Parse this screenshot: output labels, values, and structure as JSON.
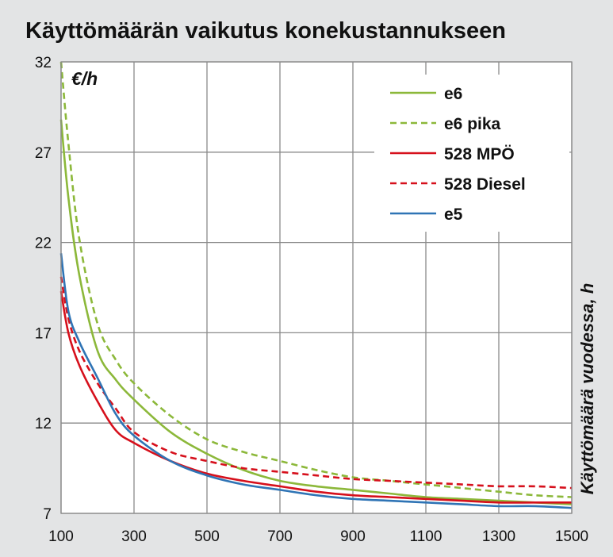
{
  "chart_data": {
    "type": "line",
    "title": "Käyttömäärän vaikutus konekustannukseen",
    "unit_label": "€/h",
    "xlabel": "",
    "ylabel": "Käyttömäärä vuodessa, h",
    "xlim": [
      100,
      1500
    ],
    "ylim": [
      7,
      32
    ],
    "x_ticks": [
      100,
      300,
      500,
      700,
      900,
      1100,
      1300,
      1500
    ],
    "y_ticks": [
      7,
      12,
      17,
      22,
      27,
      32
    ],
    "grid": true,
    "legend_position": "top-right",
    "x": [
      100,
      120,
      150,
      200,
      250,
      300,
      400,
      500,
      600,
      700,
      800,
      900,
      1000,
      1100,
      1200,
      1300,
      1400,
      1500
    ],
    "series": [
      {
        "name": "e6",
        "color": "#8cb83a",
        "dash": "solid",
        "values": [
          28.8,
          24.5,
          20.2,
          16.0,
          14.4,
          13.3,
          11.5,
          10.3,
          9.4,
          8.8,
          8.5,
          8.3,
          8.1,
          7.9,
          7.8,
          7.7,
          7.6,
          7.5
        ]
      },
      {
        "name": "e6 pika",
        "color": "#8cb83a",
        "dash": "dashed",
        "values": [
          32.0,
          27.5,
          22.2,
          17.5,
          15.5,
          14.2,
          12.4,
          11.1,
          10.4,
          9.9,
          9.4,
          9.0,
          8.8,
          8.6,
          8.4,
          8.2,
          8.0,
          7.9
        ]
      },
      {
        "name": "528 MPÖ",
        "color": "#d6101c",
        "dash": "solid",
        "values": [
          19.3,
          17.0,
          15.2,
          13.2,
          11.6,
          10.9,
          9.9,
          9.2,
          8.8,
          8.5,
          8.2,
          8.0,
          7.9,
          7.8,
          7.7,
          7.6,
          7.6,
          7.6
        ]
      },
      {
        "name": "528 Diesel",
        "color": "#d6101c",
        "dash": "dashed",
        "values": [
          20.1,
          17.8,
          16.0,
          14.2,
          12.8,
          11.5,
          10.4,
          9.9,
          9.5,
          9.3,
          9.1,
          8.9,
          8.8,
          8.7,
          8.6,
          8.5,
          8.5,
          8.4
        ]
      },
      {
        "name": "e5",
        "color": "#2f74b5",
        "dash": "solid",
        "values": [
          21.4,
          18.2,
          16.5,
          14.5,
          12.5,
          11.3,
          9.9,
          9.1,
          8.6,
          8.3,
          8.0,
          7.8,
          7.7,
          7.6,
          7.5,
          7.4,
          7.4,
          7.3
        ]
      }
    ]
  }
}
